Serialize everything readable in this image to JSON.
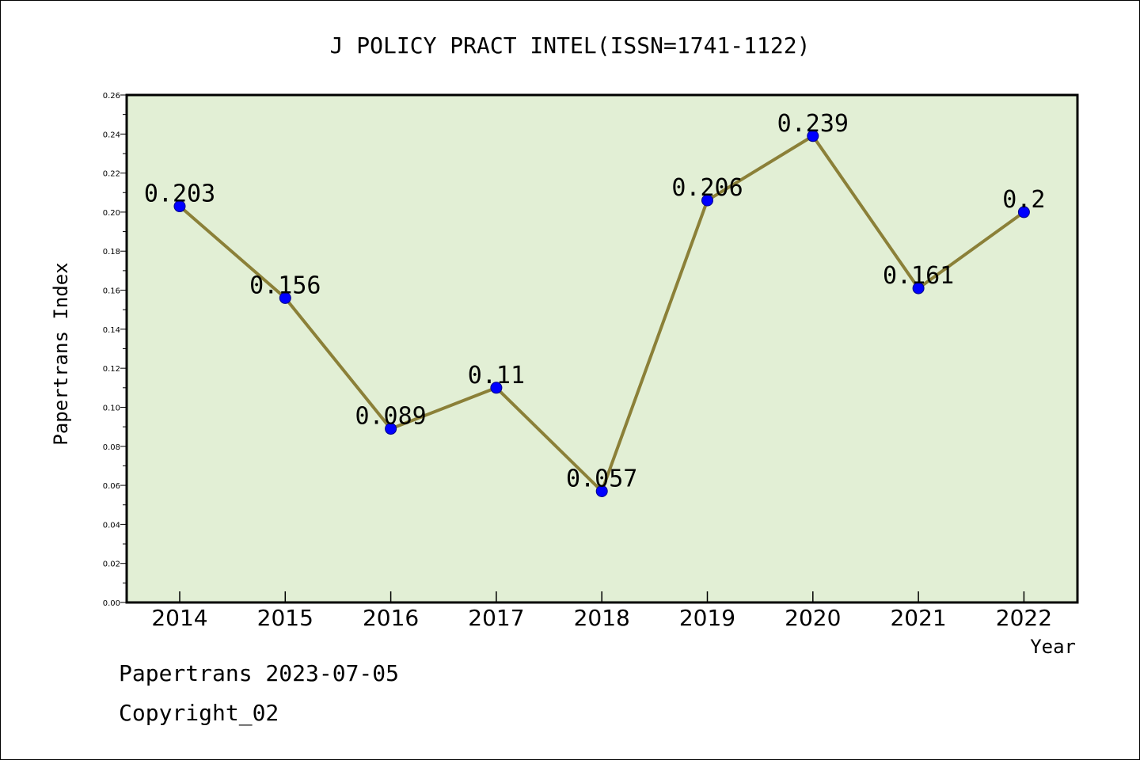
{
  "chart_data": {
    "type": "line",
    "title": "J POLICY PRACT INTEL(ISSN=1741-1122)",
    "xlabel": "Year",
    "ylabel": "Papertrans Index",
    "categories": [
      "2014",
      "2015",
      "2016",
      "2017",
      "2018",
      "2019",
      "2020",
      "2021",
      "2022"
    ],
    "values": [
      0.203,
      0.156,
      0.089,
      0.11,
      0.057,
      0.206,
      0.239,
      0.161,
      0.2
    ],
    "data_labels": [
      "0.203",
      "0.156",
      "0.089",
      "0.11",
      "0.057",
      "0.206",
      "0.239",
      "0.161",
      "0.2"
    ],
    "ylim": [
      0,
      0.26
    ],
    "yticks": [
      "0.00",
      "0.02",
      "0.04",
      "0.06",
      "0.08",
      "0.10",
      "0.12",
      "0.14",
      "0.16",
      "0.18",
      "0.20",
      "0.22",
      "0.24",
      "0.26"
    ],
    "grid": false,
    "colors": {
      "plot_background": "#e2efd5",
      "line": "#8b8038",
      "marker": "#0000ff",
      "marker_edge": "#00008b",
      "axes": "#000000"
    }
  },
  "footer": {
    "line1": "Papertrans 2023-07-05",
    "line2": "Copyright_02"
  }
}
